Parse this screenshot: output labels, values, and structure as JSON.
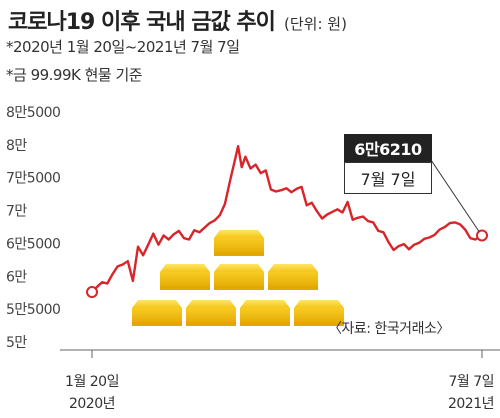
{
  "header": {
    "title": "코로나19 이후 국내 금값 추이",
    "unit": "(단위: 원)",
    "note_period": "*2020년 1월 20일~2021년 7월 7일",
    "note_basis": "*금 99.99K 현물 기준"
  },
  "source": "〈자료: 한국거래소〉",
  "callout": {
    "value": "6만6210",
    "date": "7월 7일"
  },
  "colors": {
    "line": "#d9252a",
    "marker_fill": "#ffffff",
    "gold": "#f5c518",
    "gold_dark": "#e0a800",
    "axis": "#666666"
  },
  "illustration": "gold-bars-stack",
  "chart_data": {
    "type": "line",
    "title": "코로나19 이후 국내 금값 추이",
    "xlabel": "",
    "ylabel": "",
    "ylim": [
      50000,
      80000
    ],
    "x_range": [
      "2020-01-20",
      "2021-07-07"
    ],
    "yticks": [
      {
        "value": 85000,
        "label": "8만5000"
      },
      {
        "value": 80000,
        "label": "8만"
      },
      {
        "value": 75000,
        "label": "7만5000"
      },
      {
        "value": 70000,
        "label": "7만"
      },
      {
        "value": 65000,
        "label": "6만5000"
      },
      {
        "value": 60000,
        "label": "6만"
      },
      {
        "value": 55000,
        "label": "5만5000"
      },
      {
        "value": 50000,
        "label": "5만"
      }
    ],
    "xticks": [
      {
        "date": "2020-01-20",
        "label": "1월 20일",
        "sublabel": "2020년"
      },
      {
        "date": "2021-07-07",
        "label": "7월 7일",
        "sublabel": "2021년"
      }
    ],
    "series": [
      {
        "points": [
          [
            "2020-01-20",
            57600
          ],
          [
            "2020-01-27",
            58400
          ],
          [
            "2020-02-03",
            59100
          ],
          [
            "2020-02-10",
            58900
          ],
          [
            "2020-02-17",
            60300
          ],
          [
            "2020-02-24",
            61500
          ],
          [
            "2020-03-02",
            61800
          ],
          [
            "2020-03-09",
            62300
          ],
          [
            "2020-03-16",
            59300
          ],
          [
            "2020-03-23",
            64500
          ],
          [
            "2020-03-30",
            63200
          ],
          [
            "2020-04-06",
            64800
          ],
          [
            "2020-04-13",
            66500
          ],
          [
            "2020-04-20",
            64800
          ],
          [
            "2020-04-27",
            66200
          ],
          [
            "2020-05-04",
            65600
          ],
          [
            "2020-05-11",
            66400
          ],
          [
            "2020-05-18",
            66900
          ],
          [
            "2020-05-25",
            65800
          ],
          [
            "2020-06-01",
            65600
          ],
          [
            "2020-06-08",
            67000
          ],
          [
            "2020-06-15",
            66700
          ],
          [
            "2020-06-22",
            67400
          ],
          [
            "2020-06-29",
            68100
          ],
          [
            "2020-07-06",
            68500
          ],
          [
            "2020-07-13",
            69300
          ],
          [
            "2020-07-20",
            71000
          ],
          [
            "2020-07-27",
            74500
          ],
          [
            "2020-08-03",
            77800
          ],
          [
            "2020-08-07",
            79800
          ],
          [
            "2020-08-12",
            76600
          ],
          [
            "2020-08-17",
            78200
          ],
          [
            "2020-08-24",
            76400
          ],
          [
            "2020-08-31",
            77000
          ],
          [
            "2020-09-07",
            75700
          ],
          [
            "2020-09-14",
            76100
          ],
          [
            "2020-09-21",
            73200
          ],
          [
            "2020-09-28",
            72900
          ],
          [
            "2020-10-05",
            73100
          ],
          [
            "2020-10-12",
            73400
          ],
          [
            "2020-10-19",
            72800
          ],
          [
            "2020-10-26",
            73300
          ],
          [
            "2020-11-02",
            73600
          ],
          [
            "2020-11-09",
            70800
          ],
          [
            "2020-11-16",
            71200
          ],
          [
            "2020-11-23",
            69900
          ],
          [
            "2020-11-30",
            68800
          ],
          [
            "2020-12-07",
            69400
          ],
          [
            "2020-12-14",
            69800
          ],
          [
            "2020-12-21",
            70200
          ],
          [
            "2020-12-28",
            69700
          ],
          [
            "2021-01-04",
            71300
          ],
          [
            "2021-01-11",
            68600
          ],
          [
            "2021-01-18",
            68900
          ],
          [
            "2021-01-25",
            69100
          ],
          [
            "2021-02-01",
            68400
          ],
          [
            "2021-02-08",
            68200
          ],
          [
            "2021-02-15",
            66900
          ],
          [
            "2021-02-22",
            66700
          ],
          [
            "2021-03-01",
            65200
          ],
          [
            "2021-03-08",
            64000
          ],
          [
            "2021-03-15",
            64600
          ],
          [
            "2021-03-22",
            64900
          ],
          [
            "2021-03-29",
            64100
          ],
          [
            "2021-04-05",
            64800
          ],
          [
            "2021-04-12",
            65100
          ],
          [
            "2021-04-19",
            65700
          ],
          [
            "2021-04-26",
            65900
          ],
          [
            "2021-05-03",
            66300
          ],
          [
            "2021-05-10",
            67100
          ],
          [
            "2021-05-17",
            67500
          ],
          [
            "2021-05-24",
            68100
          ],
          [
            "2021-05-31",
            68200
          ],
          [
            "2021-06-07",
            67900
          ],
          [
            "2021-06-14",
            67100
          ],
          [
            "2021-06-21",
            65800
          ],
          [
            "2021-06-28",
            65600
          ],
          [
            "2021-07-07",
            66210
          ]
        ]
      }
    ]
  }
}
